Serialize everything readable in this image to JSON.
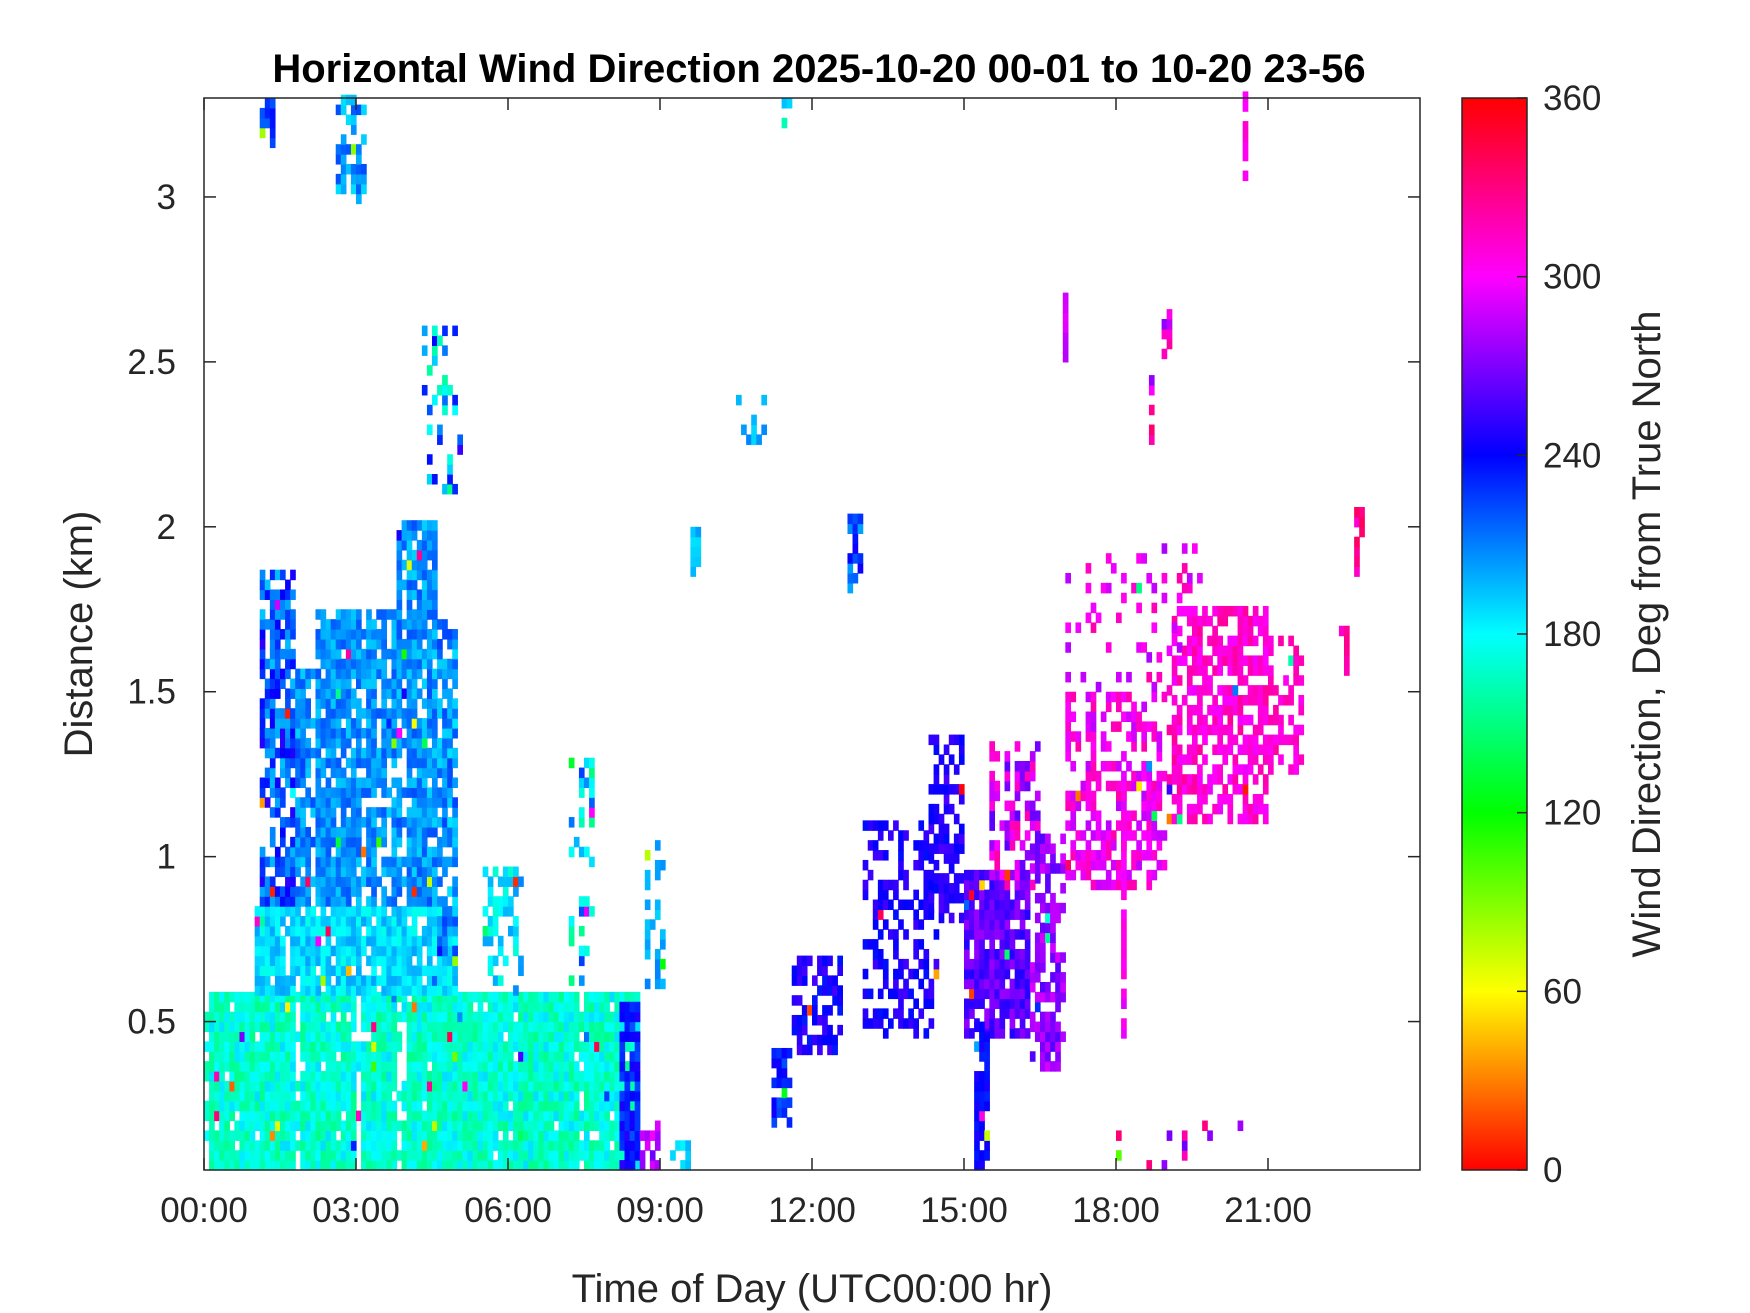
{
  "chart_data": {
    "type": "heatmap",
    "title": "Horizontal Wind Direction 2025-10-20 00-01 to 10-20 23-56",
    "xlabel": "Time of Day (UTC00:00 hr)",
    "ylabel": "Distance (km)",
    "x_tick_labels": [
      "00:00",
      "03:00",
      "06:00",
      "09:00",
      "12:00",
      "15:00",
      "18:00",
      "21:00"
    ],
    "x_ticks_hours": [
      0,
      3,
      6,
      9,
      12,
      15,
      18,
      21
    ],
    "xlim_hours": [
      0,
      24
    ],
    "y_tick_labels": [
      "0.5",
      "1",
      "1.5",
      "2",
      "2.5",
      "3"
    ],
    "y_ticks_km": [
      0.5,
      1,
      1.5,
      2,
      2.5,
      3
    ],
    "ylim_km": [
      0.05,
      3.3
    ],
    "colorbar": {
      "label": "Wind Direction, Deg from True North",
      "range": [
        0,
        360
      ],
      "tick_labels": [
        "0",
        "60",
        "120",
        "180",
        "240",
        "300",
        "360"
      ],
      "ticks": [
        0,
        60,
        120,
        180,
        240,
        300,
        360
      ],
      "colormap": "hsv"
    },
    "regions": [
      {
        "t0": 0.0,
        "t1": 8.6,
        "h0": 0.05,
        "h1": 0.58,
        "dir": 170,
        "jitter": 18,
        "density": 0.97
      },
      {
        "t0": 1.0,
        "t1": 5.0,
        "h0": 0.58,
        "h1": 0.85,
        "dir": 188,
        "jitter": 14,
        "density": 0.93
      },
      {
        "t0": 1.1,
        "t1": 1.8,
        "h0": 0.85,
        "h1": 1.85,
        "dir": 222,
        "jitter": 30,
        "density": 0.8
      },
      {
        "t0": 1.8,
        "t1": 2.2,
        "h0": 0.85,
        "h1": 1.55,
        "dir": 208,
        "jitter": 18,
        "density": 0.85
      },
      {
        "t0": 2.2,
        "t1": 3.8,
        "h0": 0.85,
        "h1": 1.75,
        "dir": 206,
        "jitter": 14,
        "density": 0.92
      },
      {
        "t0": 3.8,
        "t1": 4.6,
        "h0": 0.85,
        "h1": 2.0,
        "dir": 206,
        "jitter": 16,
        "density": 0.88
      },
      {
        "t0": 4.6,
        "t1": 4.95,
        "h0": 0.7,
        "h1": 1.7,
        "dir": 205,
        "jitter": 20,
        "density": 0.7
      },
      {
        "t0": 5.5,
        "t1": 6.3,
        "h0": 0.58,
        "h1": 0.95,
        "dir": 190,
        "jitter": 22,
        "density": 0.45
      },
      {
        "t0": 7.2,
        "t1": 7.7,
        "h0": 0.58,
        "h1": 1.3,
        "dir": 188,
        "jitter": 40,
        "density": 0.35
      },
      {
        "t0": 8.2,
        "t1": 8.6,
        "h0": 0.05,
        "h1": 0.55,
        "dir": 235,
        "jitter": 15,
        "density": 0.8
      },
      {
        "t0": 8.6,
        "t1": 8.95,
        "h0": 0.05,
        "h1": 0.2,
        "dir": 285,
        "jitter": 20,
        "density": 0.6
      },
      {
        "t0": 8.7,
        "t1": 9.1,
        "h0": 0.6,
        "h1": 1.05,
        "dir": 200,
        "jitter": 10,
        "density": 0.35
      },
      {
        "t0": 9.2,
        "t1": 9.6,
        "h0": 0.05,
        "h1": 0.12,
        "dir": 190,
        "jitter": 10,
        "density": 0.8
      },
      {
        "t0": 11.2,
        "t1": 11.6,
        "h0": 0.15,
        "h1": 0.4,
        "dir": 232,
        "jitter": 12,
        "density": 0.75
      },
      {
        "t0": 11.6,
        "t1": 12.6,
        "h0": 0.4,
        "h1": 0.68,
        "dir": 245,
        "jitter": 12,
        "density": 0.6
      },
      {
        "t0": 12.7,
        "t1": 13.0,
        "h0": 1.8,
        "h1": 2.02,
        "dir": 225,
        "jitter": 25,
        "density": 0.6
      },
      {
        "t0": 13.0,
        "t1": 14.5,
        "h0": 0.45,
        "h1": 1.1,
        "dir": 246,
        "jitter": 10,
        "density": 0.45
      },
      {
        "t0": 14.3,
        "t1": 15.0,
        "h0": 0.8,
        "h1": 1.35,
        "dir": 248,
        "jitter": 10,
        "density": 0.55
      },
      {
        "t0": 15.0,
        "t1": 16.3,
        "h0": 0.45,
        "h1": 0.95,
        "dir": 262,
        "jitter": 14,
        "density": 0.85
      },
      {
        "t0": 15.2,
        "t1": 15.5,
        "h0": 0.05,
        "h1": 0.5,
        "dir": 240,
        "jitter": 8,
        "density": 0.75
      },
      {
        "t0": 15.5,
        "t1": 16.5,
        "h0": 0.9,
        "h1": 1.35,
        "dir": 290,
        "jitter": 30,
        "density": 0.55
      },
      {
        "t0": 16.3,
        "t1": 17.0,
        "h0": 0.35,
        "h1": 1.05,
        "dir": 275,
        "jitter": 16,
        "density": 0.7
      },
      {
        "t0": 17.0,
        "t1": 19.0,
        "h0": 0.9,
        "h1": 1.5,
        "dir": 302,
        "jitter": 18,
        "density": 0.55
      },
      {
        "t0": 19.0,
        "t1": 21.0,
        "h0": 1.1,
        "h1": 1.75,
        "dir": 310,
        "jitter": 14,
        "density": 0.65
      },
      {
        "t0": 21.0,
        "t1": 21.7,
        "h0": 1.25,
        "h1": 1.65,
        "dir": 312,
        "jitter": 10,
        "density": 0.5
      },
      {
        "t0": 18.1,
        "t1": 18.2,
        "h0": 0.45,
        "h1": 1.3,
        "dir": 300,
        "jitter": 8,
        "density": 0.8
      },
      {
        "t0": 17.0,
        "t1": 19.7,
        "h0": 1.5,
        "h1": 1.95,
        "dir": 300,
        "jitter": 20,
        "density": 0.12
      },
      {
        "t0": 18.0,
        "t1": 20.5,
        "h0": 0.05,
        "h1": 0.2,
        "dir": 305,
        "jitter": 40,
        "density": 0.1
      },
      {
        "t0": 22.4,
        "t1": 22.6,
        "h0": 1.55,
        "h1": 1.72,
        "dir": 320,
        "jitter": 8,
        "density": 0.7
      },
      {
        "t0": 22.7,
        "t1": 22.9,
        "h0": 1.85,
        "h1": 2.05,
        "dir": 325,
        "jitter": 15,
        "density": 0.6
      },
      {
        "t0": 1.1,
        "t1": 1.4,
        "h0": 3.15,
        "h1": 3.3,
        "dir": 228,
        "jitter": 12,
        "density": 0.6
      },
      {
        "t0": 2.6,
        "t1": 3.2,
        "h0": 2.98,
        "h1": 3.3,
        "dir": 205,
        "jitter": 18,
        "density": 0.55
      },
      {
        "t0": 4.3,
        "t1": 5.1,
        "h0": 2.1,
        "h1": 2.6,
        "dir": 195,
        "jitter": 45,
        "density": 0.3
      },
      {
        "t0": 11.4,
        "t1": 11.6,
        "h0": 3.15,
        "h1": 3.3,
        "dir": 180,
        "jitter": 20,
        "density": 0.6
      },
      {
        "t0": 20.5,
        "t1": 20.6,
        "h0": 3.05,
        "h1": 3.3,
        "dir": 305,
        "jitter": 8,
        "density": 0.7
      },
      {
        "t0": 16.95,
        "t1": 17.0,
        "h0": 2.5,
        "h1": 2.7,
        "dir": 290,
        "jitter": 8,
        "density": 0.9
      },
      {
        "t0": 18.9,
        "t1": 19.05,
        "h0": 2.45,
        "h1": 2.65,
        "dir": 300,
        "jitter": 30,
        "density": 0.7
      },
      {
        "t0": 18.65,
        "t1": 18.75,
        "h0": 2.25,
        "h1": 2.45,
        "dir": 300,
        "jitter": 40,
        "density": 0.6
      },
      {
        "t0": 10.5,
        "t1": 11.2,
        "h0": 2.25,
        "h1": 2.4,
        "dir": 195,
        "jitter": 15,
        "density": 0.3
      },
      {
        "t0": 9.6,
        "t1": 9.8,
        "h0": 1.85,
        "h1": 2.0,
        "dir": 195,
        "jitter": 10,
        "density": 0.6
      }
    ]
  }
}
